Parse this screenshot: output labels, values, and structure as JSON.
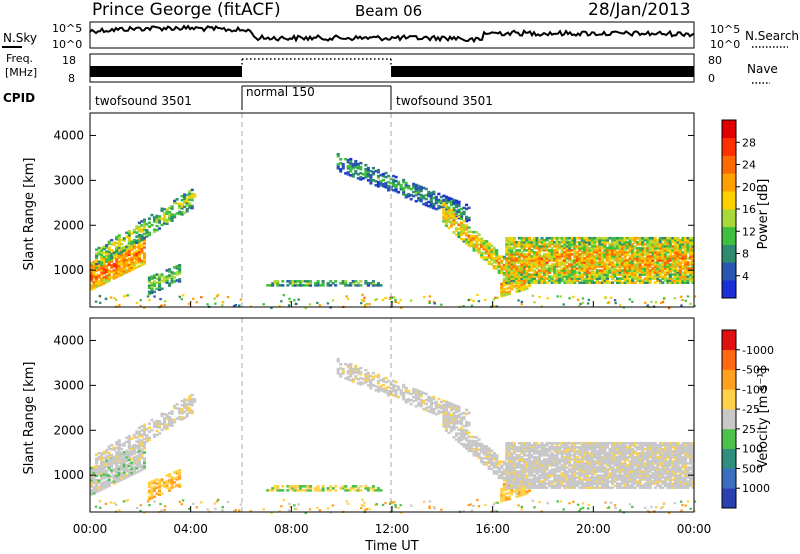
{
  "header": {
    "station": "Prince George (fitACF)",
    "beam": "Beam 06",
    "date": "28/Jan/2013"
  },
  "noise_panel": {
    "left_label": "N.Sky",
    "right_label": "N.Search",
    "ticks": [
      "10^5",
      "10^0"
    ]
  },
  "freq_panel": {
    "left_label_line1": "Freq.",
    "left_label_line2": "[MHz]",
    "right_label": "Nave",
    "left_ticks": [
      "18",
      "8"
    ],
    "right_ticks": [
      "80",
      "0"
    ]
  },
  "cpid_panel": {
    "label": "CPID",
    "segments": [
      {
        "name": "twofsound 3501",
        "start": 0,
        "end": 6
      },
      {
        "name": "normal 150",
        "start": 6,
        "end": 12
      },
      {
        "name": "twofsound 3501",
        "start": 12,
        "end": 24
      }
    ]
  },
  "colorbars": {
    "power": {
      "label": "Power [dB]",
      "ticks": [
        "4",
        "8",
        "12",
        "16",
        "20",
        "24",
        "28"
      ],
      "colors": [
        "#1a2fd8",
        "#2a55b0",
        "#2e8b6f",
        "#3fbf3f",
        "#a8d83a",
        "#ffd000",
        "#ffa000",
        "#ff6a00",
        "#ff3000",
        "#e00000"
      ]
    },
    "velocity": {
      "label": "Velocity [m s⁻¹]",
      "ticks": [
        "1000",
        "500",
        "100",
        "25",
        "-25",
        "-100",
        "-500",
        "-1000"
      ],
      "colors": [
        "#2a3fb0",
        "#3a6fc0",
        "#2f8f7f",
        "#4cc24c",
        "#c8c8c8",
        "#ffd24a",
        "#ffa020",
        "#ff6a10",
        "#e01010"
      ]
    }
  },
  "chart_data": {
    "type": "heatmap",
    "xlabel": "Time UT",
    "ylabel": "Slant Range [km]",
    "x_ticks": [
      "00:00",
      "04:00",
      "08:00",
      "12:00",
      "16:00",
      "20:00",
      "00:00"
    ],
    "x_range_hours": [
      0,
      24
    ],
    "y_range_km": [
      180,
      4500
    ],
    "y_ticks": [
      1000,
      2000,
      3000,
      4000
    ],
    "mode_change_lines_hours": [
      6,
      12
    ],
    "panels": [
      {
        "name": "power",
        "colorbar": "power"
      },
      {
        "name": "velocity",
        "colorbar": "velocity"
      }
    ],
    "echo_regions": [
      {
        "region": "early near-range ground scatter",
        "t": [
          0,
          2.2
        ],
        "range_km": [
          800,
          1800
        ],
        "power_db": 26
      },
      {
        "region": "early rising band",
        "t": [
          0.2,
          4.2
        ],
        "range_km": [
          900,
          2800
        ],
        "power_db": 14
      },
      {
        "region": "ionospheric band",
        "t": [
          9.8,
          15.0
        ],
        "range_km": [
          3500,
          2300
        ],
        "power_db": 8
      },
      {
        "region": "descending band",
        "t": [
          14.0,
          17.0
        ],
        "range_km": [
          2300,
          700
        ],
        "power_db": 20
      },
      {
        "region": "late strong band",
        "t": [
          16.5,
          24
        ],
        "range_km": [
          800,
          1700
        ],
        "power_db": 24
      }
    ]
  }
}
